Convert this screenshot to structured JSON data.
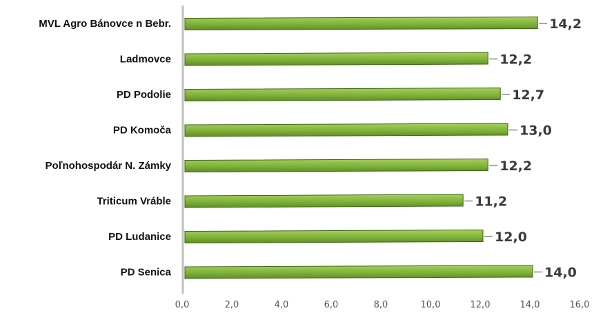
{
  "chart_data": {
    "type": "bar",
    "orientation": "horizontal",
    "categories": [
      "MVL Agro Bánovce n Bebr.",
      "Ladmovce",
      "PD Podolie",
      "PD Komoča",
      "Poľnohospodár N. Zámky",
      "Triticum Vráble",
      "PD Ludanice",
      "PD Senica"
    ],
    "values": [
      14.2,
      12.2,
      12.7,
      13.0,
      12.2,
      11.2,
      12.0,
      14.0
    ],
    "value_labels": [
      "14,2",
      "12,2",
      "12,7",
      "13,0",
      "12,2",
      "11,2",
      "12,0",
      "14,0"
    ],
    "x_ticks": [
      "0,0",
      "2,0",
      "4,0",
      "6,0",
      "8,0",
      "10,0",
      "12,0",
      "14,0",
      "16,0"
    ],
    "xlim": [
      0,
      16
    ],
    "title": "",
    "xlabel": "",
    "ylabel": "",
    "grid": false,
    "legend": "none",
    "colors": {
      "bar_top": "#a6cf5a",
      "bar_bottom": "#5f8e22",
      "bar_edge": "#3f6517",
      "axis": "#bfbfbf",
      "leader": "#8a8a8a"
    }
  }
}
